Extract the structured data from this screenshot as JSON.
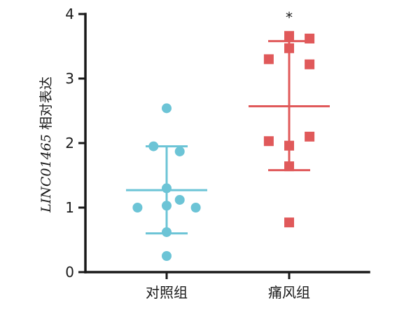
{
  "chart_data": {
    "type": "scatter",
    "title": "",
    "ylabel_italic": "LINC01465",
    "ylabel_rest": " 相对表达",
    "ylim": [
      0,
      4
    ],
    "yticks": [
      0,
      1,
      2,
      3,
      4
    ],
    "legend": "none",
    "grid": false,
    "categories": [
      "对照组",
      "痛风组"
    ],
    "series": [
      {
        "category": "对照组",
        "marker": "circle",
        "color": "#6cc4d6",
        "mean": 1.27,
        "sd_low": 0.6,
        "sd_high": 1.95,
        "points": [
          {
            "x": 0.5,
            "y": 2.54
          },
          {
            "x": 0.32,
            "y": 1.95
          },
          {
            "x": 0.68,
            "y": 1.87
          },
          {
            "x": 0.5,
            "y": 1.3
          },
          {
            "x": 0.5,
            "y": 1.03
          },
          {
            "x": 0.68,
            "y": 1.12
          },
          {
            "x": 0.1,
            "y": 1.0
          },
          {
            "x": 0.9,
            "y": 1.0
          },
          {
            "x": 0.5,
            "y": 0.62
          },
          {
            "x": 0.5,
            "y": 0.25
          }
        ]
      },
      {
        "category": "痛风组",
        "marker": "square",
        "color": "#e0595a",
        "mean": 2.57,
        "sd_low": 1.58,
        "sd_high": 3.58,
        "significance": "*",
        "points": [
          {
            "x": 0.5,
            "y": 3.66
          },
          {
            "x": 0.78,
            "y": 3.62
          },
          {
            "x": 0.5,
            "y": 3.47
          },
          {
            "x": 0.22,
            "y": 3.3
          },
          {
            "x": 0.78,
            "y": 3.22
          },
          {
            "x": 0.78,
            "y": 2.1
          },
          {
            "x": 0.22,
            "y": 2.03
          },
          {
            "x": 0.5,
            "y": 1.96
          },
          {
            "x": 0.5,
            "y": 1.64
          },
          {
            "x": 0.5,
            "y": 0.77
          }
        ]
      }
    ]
  }
}
